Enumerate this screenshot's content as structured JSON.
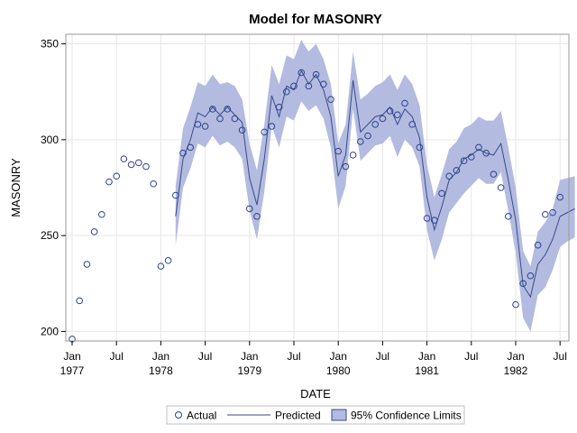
{
  "chart_data": {
    "type": "line",
    "title": "Model for MASONRY",
    "xlabel": "DATE",
    "ylabel": "MASONRY",
    "ylim": [
      195,
      355
    ],
    "yticks": [
      200,
      250,
      300,
      350
    ],
    "x_start": "1977-01",
    "x_months": 60,
    "xticks": [
      {
        "month_index": 0,
        "line1": "Jan",
        "line2": "1977"
      },
      {
        "month_index": 6,
        "line1": "Jul",
        "line2": ""
      },
      {
        "month_index": 12,
        "line1": "Jan",
        "line2": "1978"
      },
      {
        "month_index": 18,
        "line1": "Jul",
        "line2": ""
      },
      {
        "month_index": 24,
        "line1": "Jan",
        "line2": "1979"
      },
      {
        "month_index": 30,
        "line1": "Jul",
        "line2": ""
      },
      {
        "month_index": 36,
        "line1": "Jan",
        "line2": "1980"
      },
      {
        "month_index": 42,
        "line1": "Jul",
        "line2": ""
      },
      {
        "month_index": 48,
        "line1": "Jan",
        "line2": "1981"
      },
      {
        "month_index": 54,
        "line1": "Jul",
        "line2": ""
      },
      {
        "month_index": 60,
        "line1": "Jan",
        "line2": "1982"
      },
      {
        "month_index": 66,
        "line1": "Jul",
        "line2": ""
      }
    ],
    "actual": [
      196,
      216,
      235,
      252,
      261,
      278,
      281,
      290,
      287,
      288,
      286,
      277,
      234,
      237,
      271,
      293,
      296,
      308,
      307,
      316,
      311,
      316,
      311,
      305,
      264,
      260,
      304,
      307,
      317,
      325,
      328,
      335,
      328,
      334,
      329,
      321,
      294,
      286,
      292,
      299,
      302,
      308,
      311,
      315,
      313,
      319,
      308,
      296,
      259,
      258,
      272,
      281,
      284,
      289,
      291,
      296,
      293,
      282,
      275,
      260,
      214,
      225,
      229,
      245,
      261,
      262,
      270
    ],
    "predicted_start_index": 14,
    "predicted": [
      260,
      290,
      300,
      314,
      312,
      317,
      313,
      317,
      313,
      309,
      280,
      266,
      290,
      323,
      312,
      328,
      326,
      336,
      329,
      334,
      326,
      312,
      281,
      292,
      331,
      304,
      308,
      312,
      313,
      317,
      308,
      316,
      312,
      301,
      270,
      253,
      265,
      279,
      283,
      290,
      292,
      295,
      293,
      292,
      298,
      279,
      258,
      224,
      218,
      235,
      240,
      248,
      260,
      262,
      264
    ],
    "ci_upper": [
      276,
      306,
      317,
      330,
      328,
      334,
      329,
      330,
      328,
      321,
      298,
      284,
      308,
      339,
      329,
      344,
      342,
      352,
      346,
      350,
      342,
      329,
      298,
      308,
      346,
      321,
      324,
      328,
      330,
      334,
      326,
      334,
      329,
      318,
      287,
      270,
      282,
      295,
      299,
      306,
      308,
      312,
      310,
      310,
      315,
      296,
      275,
      242,
      234,
      252,
      257,
      264,
      279,
      280,
      281
    ],
    "ci_lower": [
      245,
      275,
      285,
      298,
      296,
      302,
      297,
      299,
      296,
      290,
      263,
      248,
      273,
      307,
      296,
      312,
      310,
      320,
      315,
      318,
      311,
      296,
      264,
      276,
      316,
      289,
      293,
      297,
      298,
      302,
      291,
      300,
      296,
      286,
      253,
      237,
      248,
      262,
      267,
      272,
      276,
      280,
      277,
      277,
      283,
      263,
      241,
      207,
      200,
      219,
      223,
      232,
      244,
      247,
      249
    ],
    "legend": {
      "position": "bottom",
      "actual_label": "Actual",
      "predicted_label": "Predicted",
      "ci_label": "95% Confidence Limits"
    },
    "colors": {
      "marker": "#2b3f8c",
      "line": "#3a4a8c",
      "band": "#b3bbe0",
      "grid": "#e6e6e6",
      "frame": "#9a9a9a"
    }
  }
}
